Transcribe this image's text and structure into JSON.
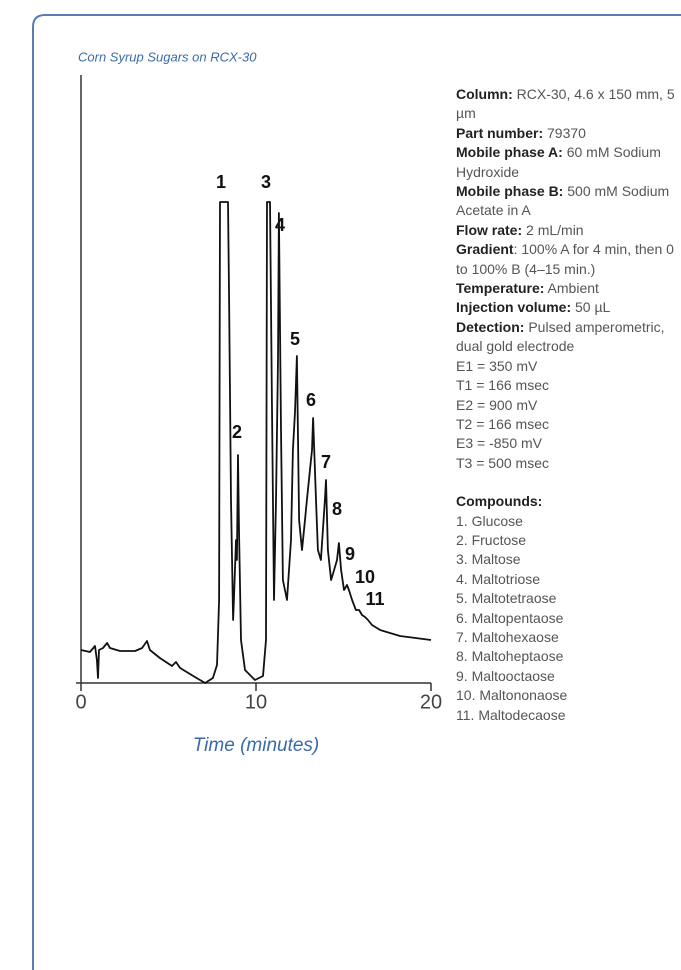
{
  "chart_data": {
    "type": "line",
    "title": "Corn Syrup Sugars on RCX-30",
    "x_label": "Time (minutes)",
    "xlim": [
      0,
      20
    ],
    "xticks": [
      0,
      10,
      20
    ],
    "ylim": [
      0,
      608
    ],
    "annotations": [
      "1",
      "2",
      "3",
      "4",
      "5",
      "6",
      "7",
      "8",
      "9",
      "10",
      "11"
    ],
    "series": [
      {
        "color": "#111111",
        "x": [
          0,
          0.51,
          0.8,
          0.91,
          0.97,
          1.03,
          1.26,
          1.49,
          1.66,
          2.23,
          3.09,
          3.49,
          3.77,
          3.94,
          4.51,
          5.2,
          5.43,
          5.66,
          6.51,
          7.09,
          7.54,
          7.77,
          7.89,
          7.94,
          8.4,
          8.46,
          8.57,
          8.69,
          8.74,
          8.86,
          8.91,
          8.97,
          9.03,
          9.14,
          9.37,
          9.94,
          10.4,
          10.57,
          10.63,
          10.8,
          10.91,
          11.03,
          11.14,
          11.26,
          11.31,
          11.43,
          11.54,
          11.77,
          12,
          12.11,
          12.23,
          12.34,
          12.46,
          12.63,
          12.8,
          12.91,
          13.2,
          13.26,
          13.43,
          13.54,
          13.71,
          13.94,
          14,
          14.11,
          14.29,
          14.46,
          14.63,
          14.74,
          14.86,
          15.03,
          15.2,
          15.31,
          15.49,
          15.71,
          15.89,
          16.06,
          16.23,
          16.4,
          16.63,
          17.09,
          18.23,
          20
        ],
        "values": [
          33,
          31,
          37,
          23,
          5,
          33,
          35,
          40,
          35,
          32,
          32,
          35,
          42,
          33,
          25,
          17,
          21,
          15,
          6,
          0,
          5,
          18,
          83,
          481,
          481,
          383,
          183,
          63,
          83,
          143,
          123,
          228,
          153,
          43,
          13,
          3,
          7,
          43,
          481,
          481,
          283,
          83,
          183,
          323,
          470,
          253,
          103,
          83,
          143,
          233,
          271,
          327,
          163,
          133,
          163,
          183,
          233,
          265,
          183,
          133,
          123,
          183,
          203,
          133,
          103,
          113,
          123,
          140,
          113,
          93,
          98,
          93,
          83,
          73,
          73,
          68,
          66,
          63,
          58,
          53,
          47,
          43
        ]
      }
    ]
  },
  "conditions": [
    {
      "label": "Column:",
      "text": " RCX-30, 4.6 x 150 mm, 5 µm"
    },
    {
      "label": "Part number:",
      "text": " 79370"
    },
    {
      "label": "Mobile phase A:",
      "text": " 60 mM Sodium Hydroxide"
    },
    {
      "label": "Mobile phase B:",
      "text": " 500 mM Sodium Acetate in A"
    },
    {
      "label": "Flow rate:",
      "text": " 2 mL/min"
    },
    {
      "label": "Gradient",
      "text": ": 100% A for 4 min, then 0 to 100% B (4–15 min.)"
    },
    {
      "label": "Temperature:",
      "text": " Ambient"
    },
    {
      "label": "Injection volume:",
      "text": " 50 µL"
    },
    {
      "label": "Detection:",
      "text": " Pulsed amperometric, dual gold electrode"
    },
    {
      "text": "E1 = 350 mV"
    },
    {
      "text": "T1 = 166 msec"
    },
    {
      "text": "E2 = 900 mV"
    },
    {
      "text": "T2 = 166 msec"
    },
    {
      "text": "E3 = -850 mV"
    },
    {
      "text": "T3 = 500 msec"
    }
  ],
  "compounds_title": "Compounds:",
  "compounds": [
    "1. Glucose",
    "2. Fructose",
    "3. Maltose",
    "4. Maltotriose",
    "5. Maltotetraose",
    "6. Maltopentaose",
    "7. Maltohexaose",
    "8. Maltoheptaose",
    "9. Maltooctaose",
    "10. Maltononaose",
    "11. Maltodecaose"
  ]
}
